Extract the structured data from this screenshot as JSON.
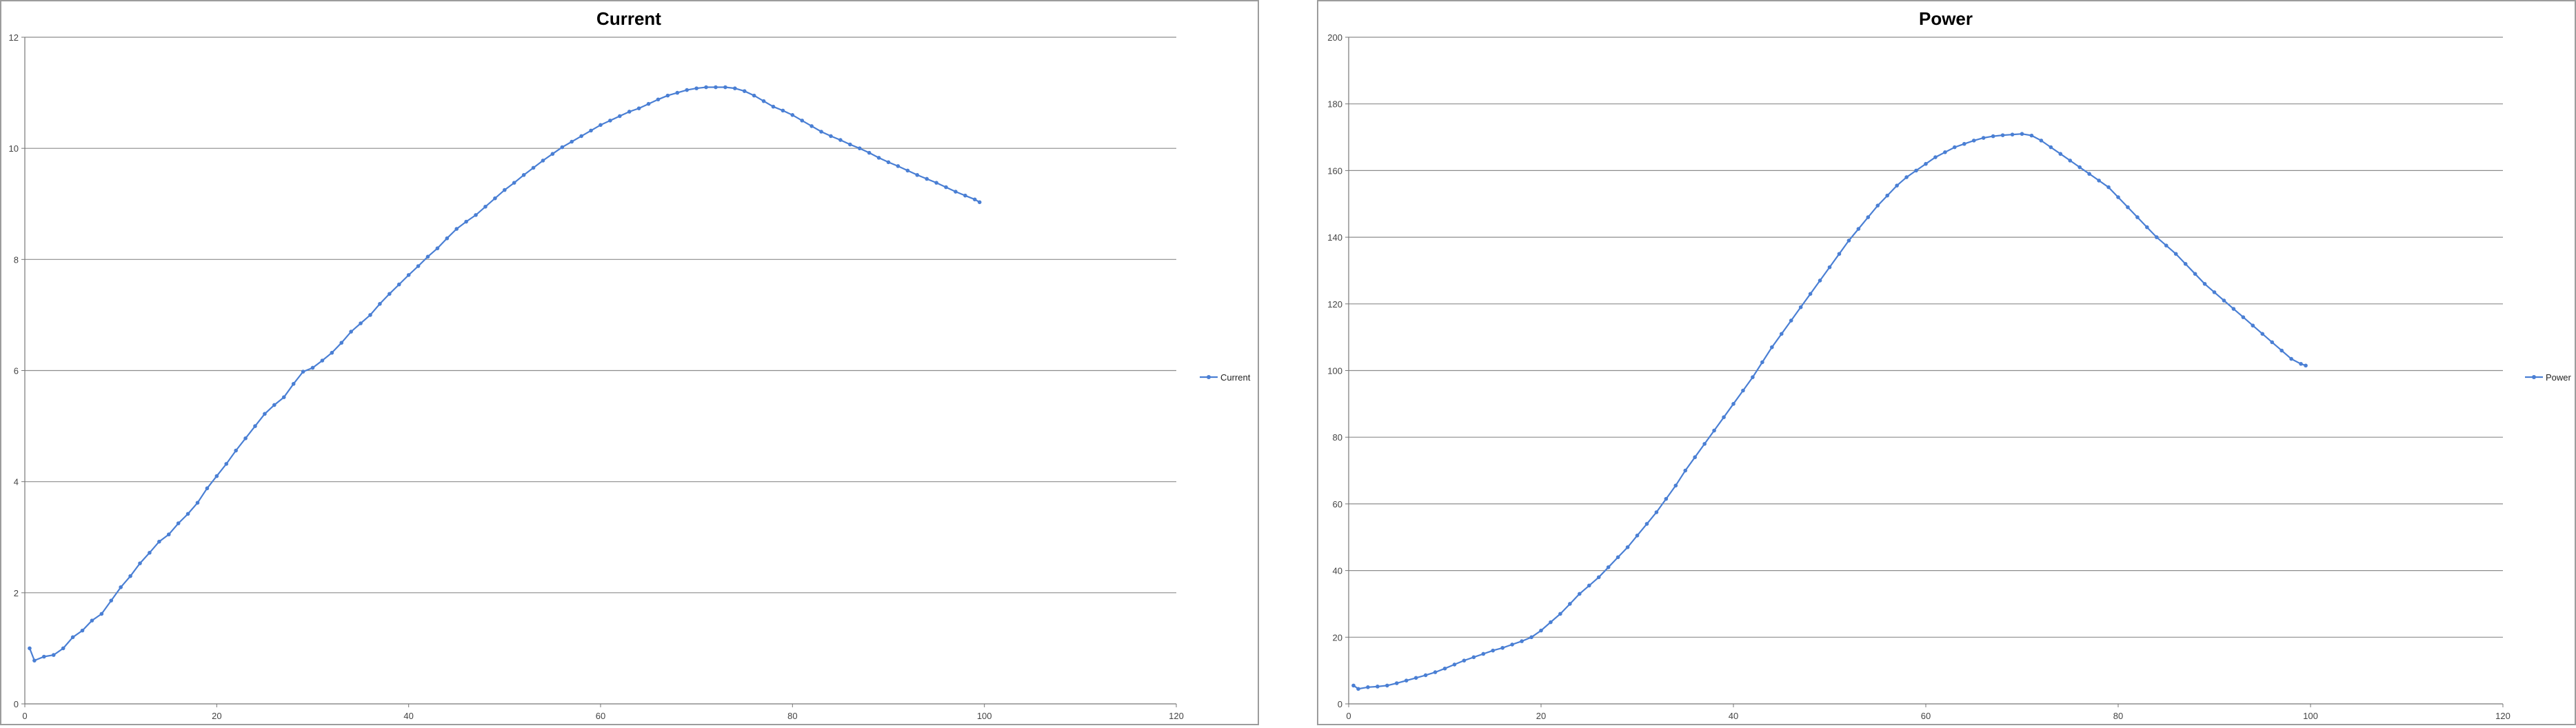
{
  "chart_data": [
    {
      "type": "line",
      "title": "Current",
      "xlabel": "",
      "ylabel": "",
      "xlim": [
        0,
        120
      ],
      "ylim": [
        0,
        12
      ],
      "xticks": [
        0,
        20,
        40,
        60,
        80,
        100,
        120
      ],
      "yticks": [
        0,
        2,
        4,
        6,
        8,
        10,
        12
      ],
      "grid": "horizontal",
      "legend_position": "right",
      "color": "#4a7fd4",
      "series": [
        {
          "name": "Current",
          "x": [
            0.5,
            1.0,
            2.0,
            3.0,
            4.0,
            5.0,
            6.0,
            7.0,
            8.0,
            9.0,
            10.0,
            11.0,
            12.0,
            13.0,
            14.0,
            15.0,
            16.0,
            17.0,
            18.0,
            19.0,
            20.0,
            21.0,
            22.0,
            23.0,
            24.0,
            25.0,
            26.0,
            27.0,
            28.0,
            29.0,
            30.0,
            31.0,
            32.0,
            33.0,
            34.0,
            35.0,
            36.0,
            37.0,
            38.0,
            39.0,
            40.0,
            41.0,
            42.0,
            43.0,
            44.0,
            45.0,
            46.0,
            47.0,
            48.0,
            49.0,
            50.0,
            51.0,
            52.0,
            53.0,
            54.0,
            55.0,
            56.0,
            57.0,
            58.0,
            59.0,
            60.0,
            61.0,
            62.0,
            63.0,
            64.0,
            65.0,
            66.0,
            67.0,
            68.0,
            69.0,
            70.0,
            71.0,
            72.0,
            73.0,
            74.0,
            75.0,
            76.0,
            77.0,
            78.0,
            79.0,
            80.0,
            81.0,
            82.0,
            83.0,
            84.0,
            85.0,
            86.0,
            87.0,
            88.0,
            89.0,
            90.0,
            91.0,
            92.0,
            93.0,
            94.0,
            95.0,
            96.0,
            97.0,
            98.0,
            99.0,
            99.5
          ],
          "values": [
            1.0,
            0.78,
            0.85,
            0.88,
            1.0,
            1.2,
            1.32,
            1.5,
            1.62,
            1.86,
            2.1,
            2.3,
            2.53,
            2.72,
            2.92,
            3.05,
            3.25,
            3.42,
            3.62,
            3.88,
            4.1,
            4.32,
            4.56,
            4.78,
            5.0,
            5.22,
            5.38,
            5.52,
            5.76,
            5.98,
            6.05,
            6.18,
            6.32,
            6.5,
            6.7,
            6.85,
            7.0,
            7.2,
            7.38,
            7.55,
            7.72,
            7.88,
            8.05,
            8.2,
            8.38,
            8.55,
            8.68,
            8.8,
            8.95,
            9.1,
            9.25,
            9.38,
            9.52,
            9.65,
            9.78,
            9.9,
            10.02,
            10.12,
            10.22,
            10.32,
            10.42,
            10.5,
            10.58,
            10.66,
            10.72,
            10.8,
            10.88,
            10.95,
            11.0,
            11.05,
            11.08,
            11.1,
            11.1,
            11.1,
            11.08,
            11.03,
            10.95,
            10.85,
            10.75,
            10.68,
            10.6,
            10.5,
            10.4,
            10.3,
            10.22,
            10.15,
            10.07,
            10.0,
            9.92,
            9.83,
            9.75,
            9.68,
            9.6,
            9.52,
            9.45,
            9.38,
            9.3,
            9.22,
            9.15,
            9.08,
            9.03
          ]
        }
      ]
    },
    {
      "type": "line",
      "title": "Power",
      "xlabel": "",
      "ylabel": "",
      "xlim": [
        0,
        120
      ],
      "ylim": [
        0,
        200
      ],
      "xticks": [
        0,
        20,
        40,
        60,
        80,
        100,
        120
      ],
      "yticks": [
        0,
        20,
        40,
        60,
        80,
        100,
        120,
        140,
        160,
        180,
        200
      ],
      "grid": "horizontal",
      "legend_position": "right",
      "color": "#4a7fd4",
      "series": [
        {
          "name": "Power",
          "x": [
            0.5,
            1.0,
            2.0,
            3.0,
            4.0,
            5.0,
            6.0,
            7.0,
            8.0,
            9.0,
            10.0,
            11.0,
            12.0,
            13.0,
            14.0,
            15.0,
            16.0,
            17.0,
            18.0,
            19.0,
            20.0,
            21.0,
            22.0,
            23.0,
            24.0,
            25.0,
            26.0,
            27.0,
            28.0,
            29.0,
            30.0,
            31.0,
            32.0,
            33.0,
            34.0,
            35.0,
            36.0,
            37.0,
            38.0,
            39.0,
            40.0,
            41.0,
            42.0,
            43.0,
            44.0,
            45.0,
            46.0,
            47.0,
            48.0,
            49.0,
            50.0,
            51.0,
            52.0,
            53.0,
            54.0,
            55.0,
            56.0,
            57.0,
            58.0,
            59.0,
            60.0,
            61.0,
            62.0,
            63.0,
            64.0,
            65.0,
            66.0,
            67.0,
            68.0,
            69.0,
            70.0,
            71.0,
            72.0,
            73.0,
            74.0,
            75.0,
            76.0,
            77.0,
            78.0,
            79.0,
            80.0,
            81.0,
            82.0,
            83.0,
            84.0,
            85.0,
            86.0,
            87.0,
            88.0,
            89.0,
            90.0,
            91.0,
            92.0,
            93.0,
            94.0,
            95.0,
            96.0,
            97.0,
            98.0,
            99.0,
            99.5
          ],
          "values": [
            5.5,
            4.5,
            5.0,
            5.2,
            5.5,
            6.2,
            7.0,
            7.8,
            8.6,
            9.5,
            10.6,
            11.8,
            13.0,
            14.0,
            15.0,
            16.0,
            16.8,
            17.8,
            18.8,
            20.0,
            22.0,
            24.5,
            27.0,
            30.0,
            33.0,
            35.5,
            38.0,
            41.0,
            44.0,
            47.0,
            50.5,
            54.0,
            57.5,
            61.5,
            65.5,
            70.0,
            74.0,
            78.0,
            82.0,
            86.0,
            90.0,
            94.0,
            98.0,
            102.5,
            107.0,
            111.0,
            115.0,
            119.0,
            123.0,
            127.0,
            131.0,
            135.0,
            139.0,
            142.5,
            146.0,
            149.5,
            152.5,
            155.5,
            158.0,
            160.0,
            162.0,
            164.0,
            165.5,
            167.0,
            168.0,
            169.0,
            169.8,
            170.3,
            170.6,
            170.8,
            171.0,
            170.5,
            169.0,
            167.0,
            165.0,
            163.0,
            161.0,
            159.0,
            157.0,
            155.0,
            152.0,
            149.0,
            146.0,
            143.0,
            140.0,
            137.5,
            135.0,
            132.0,
            129.0,
            126.0,
            123.5,
            121.0,
            118.5,
            116.0,
            113.5,
            111.0,
            108.5,
            106.0,
            103.5,
            102.0,
            101.5
          ]
        }
      ]
    }
  ]
}
